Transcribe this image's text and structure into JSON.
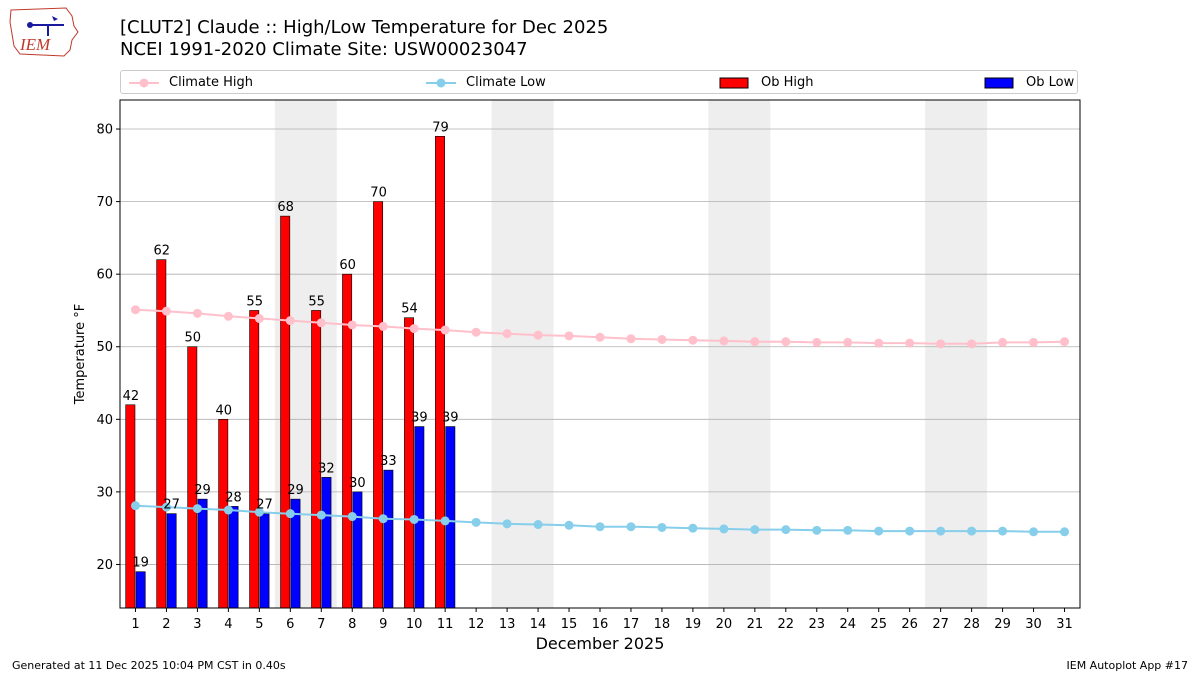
{
  "header": {
    "title_line1": "[CLUT2] Claude :: High/Low Temperature for Dec 2025",
    "title_line2": "NCEI 1991-2020 Climate Site: USW00023047",
    "logo_text": "IEM"
  },
  "legend": {
    "climate_high": "Climate High",
    "climate_low": "Climate Low",
    "ob_high": "Ob High",
    "ob_low": "Ob Low"
  },
  "colors": {
    "climate_high": "#ffc0cb",
    "climate_low": "#87ceeb",
    "ob_high": "#ff0000",
    "ob_low": "#0000ff",
    "weekend_shade": "#eeeeee",
    "grid": "#b0b0b0"
  },
  "footer": {
    "generated": "Generated at 11 Dec 2025 10:04 PM CST in 0.40s",
    "app": "IEM Autoplot App #17"
  },
  "chart_data": {
    "type": "bar",
    "title": "[CLUT2] Claude :: High/Low Temperature for Dec 2025",
    "subtitle": "NCEI 1991-2020 Climate Site: USW00023047",
    "xlabel": "December 2025",
    "ylabel": "Temperature °F",
    "xlim": [
      0.5,
      31.5
    ],
    "ylim": [
      14,
      84
    ],
    "yticks": [
      20,
      30,
      40,
      50,
      60,
      70,
      80
    ],
    "grid": "horizontal",
    "legend_position": "top",
    "days": [
      1,
      2,
      3,
      4,
      5,
      6,
      7,
      8,
      9,
      10,
      11,
      12,
      13,
      14,
      15,
      16,
      17,
      18,
      19,
      20,
      21,
      22,
      23,
      24,
      25,
      26,
      27,
      28,
      29,
      30,
      31
    ],
    "shaded_days": [
      [
        6,
        7
      ],
      [
        13,
        14
      ],
      [
        20,
        21
      ],
      [
        27,
        28
      ]
    ],
    "series": [
      {
        "name": "Ob High",
        "type": "bar",
        "values": [
          42,
          62,
          50,
          40,
          55,
          68,
          55,
          60,
          70,
          54,
          79
        ]
      },
      {
        "name": "Ob Low",
        "type": "bar",
        "values": [
          19,
          27,
          29,
          28,
          27,
          29,
          32,
          30,
          33,
          39,
          39
        ]
      },
      {
        "name": "Climate High",
        "type": "line",
        "values": [
          55.1,
          54.9,
          54.6,
          54.2,
          53.9,
          53.6,
          53.3,
          53.0,
          52.8,
          52.5,
          52.3,
          52.0,
          51.8,
          51.6,
          51.5,
          51.3,
          51.1,
          51.0,
          50.9,
          50.8,
          50.7,
          50.7,
          50.6,
          50.6,
          50.5,
          50.5,
          50.4,
          50.4,
          50.6,
          50.6,
          50.7
        ]
      },
      {
        "name": "Climate Low",
        "type": "line",
        "values": [
          28.1,
          27.9,
          27.7,
          27.5,
          27.2,
          27.0,
          26.8,
          26.6,
          26.3,
          26.2,
          26.0,
          25.8,
          25.6,
          25.5,
          25.4,
          25.2,
          25.2,
          25.1,
          25.0,
          24.9,
          24.8,
          24.8,
          24.7,
          24.7,
          24.6,
          24.6,
          24.6,
          24.6,
          24.6,
          24.5,
          24.5
        ]
      }
    ]
  }
}
